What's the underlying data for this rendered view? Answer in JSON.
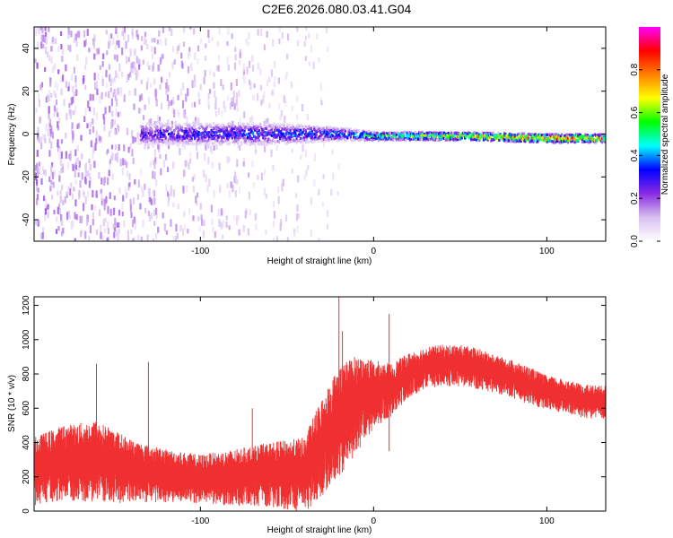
{
  "title": "C2E6.2026.080.03.41.G04",
  "chart_data": [
    {
      "type": "heatmap",
      "title": "",
      "xlabel": "Height of straight line (km)",
      "ylabel": "Frequency (Hz)",
      "xlim": [
        -196,
        134
      ],
      "ylim": [
        -50,
        50
      ],
      "xticks": [
        -100,
        0,
        100
      ],
      "yticks": [
        -40,
        -20,
        0,
        20,
        40
      ],
      "colorbar": {
        "label": "Normalized spectral amplitude",
        "range": [
          0,
          1
        ],
        "ticks": [
          0.0,
          0.2,
          0.4,
          0.6,
          0.8
        ],
        "tick_labels": [
          "0.0",
          "0.2",
          "0.4",
          "0.6",
          "0.8"
        ],
        "colors": [
          "#ffffff",
          "#d8c0f0",
          "#8a2be2",
          "#0000ff",
          "#00ffff",
          "#00ff00",
          "#ffff00",
          "#ff8000",
          "#ff0000",
          "#ff00ff"
        ]
      },
      "ridge": {
        "description_points": [
          {
            "x": -130,
            "y": 0,
            "amplitude": 0.3,
            "spread": 5
          },
          {
            "x": -60,
            "y": 0,
            "amplitude": 0.35,
            "spread": 5
          },
          {
            "x": -20,
            "y": 0,
            "amplitude": 0.4,
            "spread": 3
          },
          {
            "x": 0,
            "y": -1,
            "amplitude": 0.55,
            "spread": 2
          },
          {
            "x": 50,
            "y": -1,
            "amplitude": 0.7,
            "spread": 2
          },
          {
            "x": 100,
            "y": -2,
            "amplitude": 0.85,
            "spread": 2
          },
          {
            "x": 134,
            "y": -2,
            "amplitude": 0.8,
            "spread": 2
          }
        ]
      },
      "noise_region_x": [
        -196,
        -20
      ]
    },
    {
      "type": "line",
      "title": "",
      "xlabel": "Height of straight line (km)",
      "ylabel": "SNR (10 * v/v)",
      "xlim": [
        -196,
        134
      ],
      "ylim": [
        0,
        1250
      ],
      "xticks": [
        -100,
        0,
        100
      ],
      "yticks": [
        0,
        200,
        400,
        600,
        800,
        1000,
        1200
      ],
      "series": [
        {
          "color": "#f03030",
          "envelope_x": [
            -196,
            -180,
            -160,
            -140,
            -120,
            -100,
            -80,
            -60,
            -40,
            -30,
            -20,
            -10,
            0,
            10,
            20,
            30,
            40,
            50,
            60,
            70,
            80,
            90,
            100,
            110,
            120,
            134
          ],
          "envelope_mean": [
            250,
            300,
            310,
            250,
            220,
            200,
            210,
            230,
            230,
            400,
            550,
            650,
            700,
            720,
            800,
            850,
            860,
            860,
            840,
            810,
            780,
            740,
            700,
            680,
            650,
            640
          ],
          "envelope_amp": [
            180,
            200,
            220,
            170,
            140,
            130,
            150,
            170,
            200,
            260,
            300,
            260,
            180,
            140,
            120,
            110,
            110,
            110,
            110,
            100,
            100,
            100,
            90,
            90,
            90,
            90
          ],
          "spikes": [
            {
              "x": -160,
              "y": 860
            },
            {
              "x": -130,
              "y": 870
            },
            {
              "x": -70,
              "y": 600
            },
            {
              "x": -20,
              "y": 1250
            },
            {
              "x": -18,
              "y": 1050
            },
            {
              "x": 9,
              "y": 1150
            },
            {
              "x": 9,
              "y": 350
            },
            {
              "x": -25,
              "y": 200
            }
          ]
        }
      ]
    }
  ]
}
